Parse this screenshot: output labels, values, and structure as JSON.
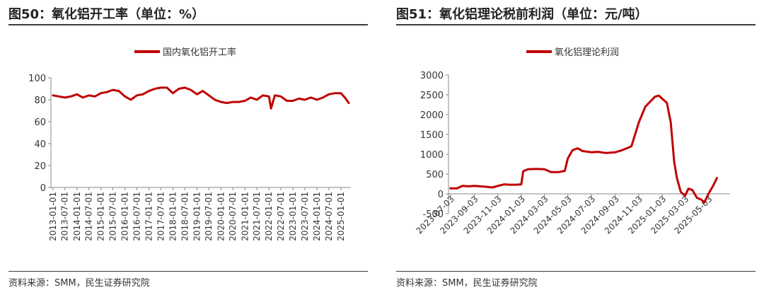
{
  "left": {
    "title": "图50：氧化铝开工率（单位：%）",
    "source": "资料来源：SMM，民生证券研究院",
    "chart_data": {
      "type": "line",
      "title": "",
      "xlabel": "",
      "ylabel": "",
      "legend_position": "top-center",
      "grid": false,
      "ylim": [
        0,
        100
      ],
      "y_ticks": [
        0,
        20,
        40,
        60,
        80,
        100
      ],
      "x_tick_labels": [
        "2013-01-01",
        "2013-07-01",
        "2014-01-01",
        "2014-07-01",
        "2015-01-01",
        "2015-07-01",
        "2016-01-01",
        "2016-07-01",
        "2017-01-01",
        "2017-07-01",
        "2018-01-01",
        "2018-07-01",
        "2019-01-01",
        "2019-07-01",
        "2020-01-01",
        "2020-07-01",
        "2021-01-01",
        "2021-07-01",
        "2022-01-01",
        "2022-07-01",
        "2023-01-01",
        "2023-07-01",
        "2024-01-01",
        "2024-07-01",
        "2025-01-01"
      ],
      "series": [
        {
          "name": "国内氧化铝开工率",
          "color": "#c00000",
          "x": [
            "2013-01",
            "2013-04",
            "2013-07",
            "2013-10",
            "2014-01",
            "2014-04",
            "2014-07",
            "2014-10",
            "2015-01",
            "2015-04",
            "2015-07",
            "2015-10",
            "2016-01",
            "2016-04",
            "2016-07",
            "2016-10",
            "2017-01",
            "2017-04",
            "2017-07",
            "2017-10",
            "2018-01",
            "2018-04",
            "2018-07",
            "2018-10",
            "2019-01",
            "2019-04",
            "2019-07",
            "2019-10",
            "2020-01",
            "2020-04",
            "2020-07",
            "2020-10",
            "2021-01",
            "2021-04",
            "2021-07",
            "2021-10",
            "2022-01",
            "2022-02",
            "2022-04",
            "2022-07",
            "2022-10",
            "2023-01",
            "2023-04",
            "2023-07",
            "2023-10",
            "2024-01",
            "2024-04",
            "2024-07",
            "2024-10",
            "2025-01",
            "2025-03",
            "2025-05"
          ],
          "values": [
            84,
            83,
            82,
            83,
            85,
            82,
            84,
            83,
            86,
            87,
            89,
            88,
            83,
            80,
            84,
            85,
            88,
            90,
            91,
            91,
            86,
            90,
            91,
            89,
            85,
            88,
            84,
            80,
            78,
            77,
            78,
            78,
            79,
            82,
            80,
            84,
            83,
            72,
            84,
            83,
            79,
            79,
            81,
            80,
            82,
            80,
            82,
            85,
            86,
            86,
            82,
            77
          ]
        }
      ]
    }
  },
  "right": {
    "title": "图51：氧化铝理论税前利润（单位：元/吨）",
    "source": "资料来源：SMM，民生证券研究院",
    "chart_data": {
      "type": "line",
      "title": "",
      "xlabel": "",
      "ylabel": "",
      "legend_position": "top-center",
      "grid": false,
      "ylim": [
        -500,
        3000
      ],
      "y_ticks": [
        -500,
        0,
        500,
        1000,
        1500,
        2000,
        2500,
        3000
      ],
      "x_tick_labels": [
        "2023-07-03",
        "2023-09-03",
        "2023-11-03",
        "2024-01-03",
        "2024-03-03",
        "2024-05-03",
        "2024-07-03",
        "2024-09-03",
        "2024-11-03",
        "2025-01-03",
        "2025-03-03",
        "2025-05-03"
      ],
      "series": [
        {
          "name": "氧化铝理论利润",
          "color": "#c00000",
          "x": [
            "2023-07-03",
            "2023-07-20",
            "2023-08-03",
            "2023-08-20",
            "2023-09-03",
            "2023-10-01",
            "2023-10-20",
            "2023-11-03",
            "2023-11-20",
            "2023-12-03",
            "2023-12-20",
            "2024-01-03",
            "2024-01-08",
            "2024-01-20",
            "2024-02-10",
            "2024-03-03",
            "2024-03-20",
            "2024-04-10",
            "2024-04-25",
            "2024-05-03",
            "2024-05-15",
            "2024-05-28",
            "2024-06-10",
            "2024-07-03",
            "2024-07-20",
            "2024-08-10",
            "2024-09-03",
            "2024-09-20",
            "2024-10-03",
            "2024-10-15",
            "2024-11-03",
            "2024-11-20",
            "2024-12-05",
            "2024-12-15",
            "2024-12-25",
            "2025-01-03",
            "2025-01-15",
            "2025-01-25",
            "2025-02-03",
            "2025-02-10",
            "2025-02-20",
            "2025-03-03",
            "2025-03-12",
            "2025-03-22",
            "2025-04-03",
            "2025-04-15",
            "2025-04-22",
            "2025-05-03",
            "2025-05-15",
            "2025-05-25"
          ],
          "values": [
            140,
            140,
            200,
            190,
            200,
            180,
            160,
            200,
            240,
            230,
            230,
            240,
            570,
            620,
            630,
            620,
            550,
            550,
            580,
            900,
            1100,
            1150,
            1080,
            1050,
            1060,
            1030,
            1050,
            1100,
            1150,
            1200,
            1800,
            2200,
            2350,
            2450,
            2480,
            2400,
            2300,
            1800,
            800,
            400,
            50,
            -50,
            130,
            100,
            -100,
            -150,
            -220,
            0,
            200,
            400
          ]
        }
      ]
    }
  }
}
